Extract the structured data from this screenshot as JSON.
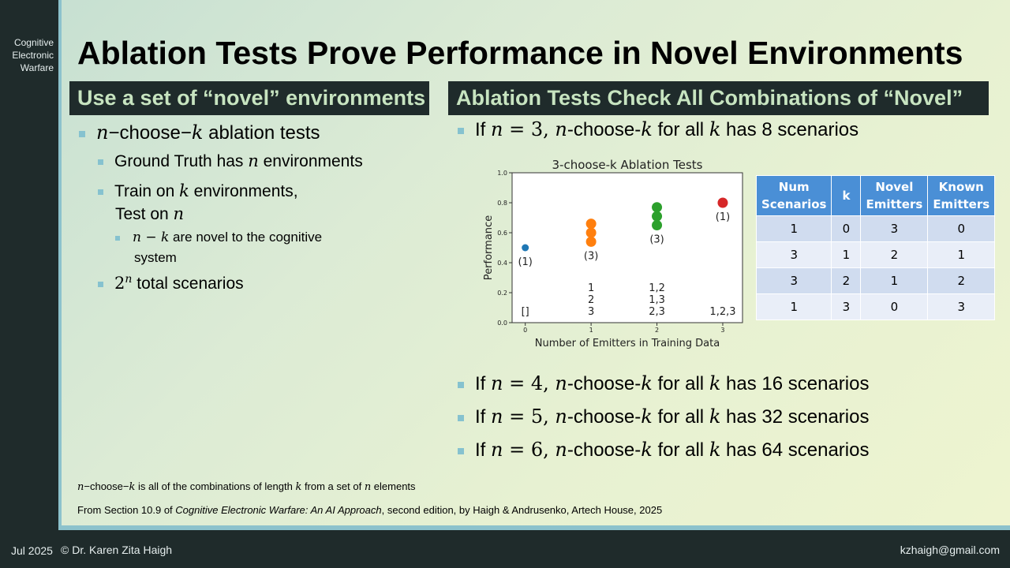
{
  "sidebar": {
    "label_lines": [
      "Cognitive",
      "Electronic",
      "Warfare"
    ]
  },
  "title": "Ablation Tests Prove Performance in Novel Environments",
  "left": {
    "header": "Use a set of “novel” environments",
    "b1_m1": "n",
    "b1_t1": "−choose−",
    "b1_m2": "k",
    "b1_t2": " ablation tests",
    "b2_t1": "Ground Truth has ",
    "b2_m1": "n",
    "b2_t2": " environments",
    "b3_t1": "Train on ",
    "b3_m1": "k",
    "b3_t2": " environments,",
    "b3_line2_t1": "Test on ",
    "b3_line2_m1": "n",
    "b4_m1": "n",
    "b4_m2": " − ",
    "b4_m3": "k",
    "b4_t1": " are novel to the cognitive",
    "b4_line2": "system",
    "b5_m1": "2",
    "b5_sup": "n",
    "b5_t1": " total scenarios"
  },
  "right": {
    "header": "Ablation Tests Check All Combinations of “Novel”",
    "lines": [
      {
        "pre": "If ",
        "m": "n",
        "eq": " = 3, ",
        "m2": "n",
        "mid": "-choose-",
        "m3": "k",
        "post1": " for all ",
        "m4": "k",
        "post2": " has 8 scenarios"
      },
      {
        "pre": "If ",
        "m": "n",
        "eq": " = 4, ",
        "m2": "n",
        "mid": "-choose-",
        "m3": "k",
        "post1": " for all ",
        "m4": "k",
        "post2": " has 16 scenarios"
      },
      {
        "pre": "If ",
        "m": "n",
        "eq": " = 5, ",
        "m2": "n",
        "mid": "-choose-",
        "m3": "k",
        "post1": " for all ",
        "m4": "k",
        "post2": " has 32 scenarios"
      },
      {
        "pre": "If ",
        "m": "n",
        "eq": " = 6, ",
        "m2": "n",
        "mid": "-choose-",
        "m3": "k",
        "post1": " for all ",
        "m4": "k",
        "post2": " has 64 scenarios"
      }
    ]
  },
  "chart_data": {
    "type": "scatter",
    "title": "3-choose-k Ablation Tests",
    "xlabel": "Number of Emitters in Training Data",
    "ylabel": "Performance",
    "xlim": [
      -0.2,
      3.3
    ],
    "ylim": [
      0.0,
      1.0
    ],
    "x_ticks": [
      "0",
      "1",
      "2",
      "3"
    ],
    "y_ticks": [
      "0.0",
      "0.2",
      "0.4",
      "0.6",
      "0.8",
      "1.0"
    ],
    "series": [
      {
        "color": "#1f77b4",
        "points": [
          [
            0,
            0.5
          ]
        ],
        "count_label": "(1)",
        "combos": [
          "[]"
        ]
      },
      {
        "color": "#ff7f0e",
        "points": [
          [
            1,
            0.54
          ],
          [
            1,
            0.6
          ],
          [
            1,
            0.66
          ]
        ],
        "count_label": "(3)",
        "combos": [
          "1",
          "2",
          "3"
        ]
      },
      {
        "color": "#2ca02c",
        "points": [
          [
            2,
            0.65
          ],
          [
            2,
            0.71
          ],
          [
            2,
            0.77
          ]
        ],
        "count_label": "(3)",
        "combos": [
          "1,2",
          "1,3",
          "2,3"
        ]
      },
      {
        "color": "#d62728",
        "points": [
          [
            3,
            0.8
          ]
        ],
        "count_label": "(1)",
        "combos": [
          "1,2,3"
        ]
      }
    ],
    "grid": false
  },
  "table": {
    "headers": [
      [
        "Num",
        "Scenarios"
      ],
      [
        "k"
      ],
      [
        "Novel",
        "Emitters"
      ],
      [
        "Known",
        "Emitters"
      ]
    ],
    "rows": [
      [
        "1",
        "0",
        "3",
        "0"
      ],
      [
        "3",
        "1",
        "2",
        "1"
      ],
      [
        "3",
        "2",
        "1",
        "2"
      ],
      [
        "1",
        "3",
        "0",
        "3"
      ]
    ]
  },
  "notes": {
    "def_m1": "n",
    "def_t1": "−choose−",
    "def_m2": "k",
    "def_t2": " is all of the combinations of length ",
    "def_m3": "k",
    "def_t3": " from a set of ",
    "def_m4": "n",
    "def_t4": " elements",
    "source_pre": "From Section 10.9 of ",
    "source_book": "Cognitive Electronic Warfare: An AI Approach",
    "source_post": ", second edition, by Haigh & Andrusenko, Artech House, 2025"
  },
  "footer": {
    "date": "Jul 2025",
    "copyright": "© Dr. Karen Zita Haigh",
    "email": "kzhaigh@gmail.com"
  }
}
